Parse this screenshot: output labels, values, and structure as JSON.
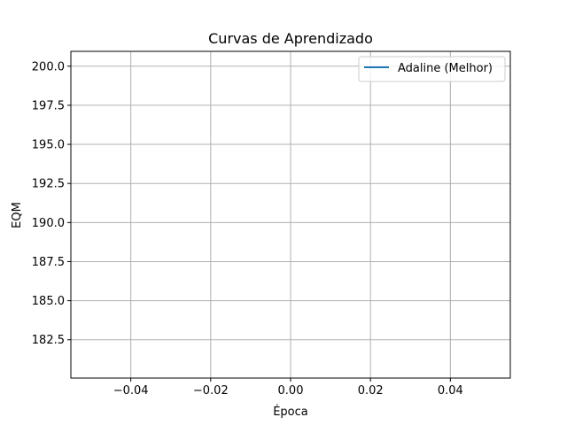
{
  "chart_data": {
    "type": "line",
    "title": "Curvas de Aprendizado",
    "xlabel": "Época",
    "ylabel": "EQM",
    "xlim": [
      -0.055,
      0.055
    ],
    "ylim": [
      180.05,
      200.95
    ],
    "xticks": [
      -0.04,
      -0.02,
      0.0,
      0.02,
      0.04
    ],
    "xtick_labels": [
      "−0.04",
      "−0.02",
      "0.00",
      "0.02",
      "0.04"
    ],
    "yticks": [
      182.5,
      185.0,
      187.5,
      190.0,
      192.5,
      195.0,
      197.5,
      200.0
    ],
    "ytick_labels": [
      "182.5",
      "185.0",
      "187.5",
      "190.0",
      "192.5",
      "195.0",
      "197.5",
      "200.0"
    ],
    "grid": true,
    "legend_position": "top-right",
    "series": [
      {
        "name": "Adaline (Melhor)",
        "color": "#1f77b4",
        "x": [],
        "y": []
      }
    ]
  }
}
